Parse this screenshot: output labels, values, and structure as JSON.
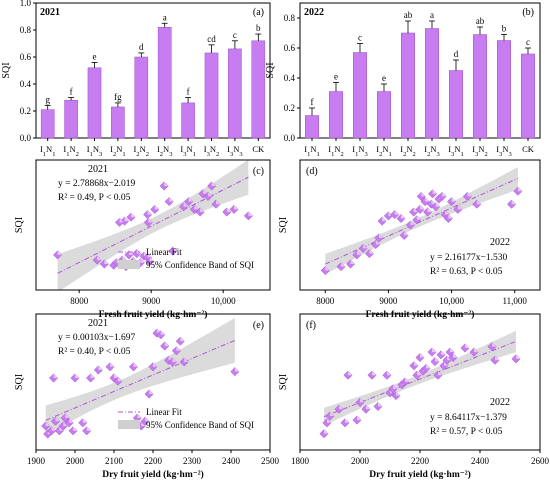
{
  "chart_data": [
    {
      "id": "a",
      "type": "bar",
      "panel_label": "(a)",
      "year": "2021",
      "ylabel": "SQI",
      "ylim": [
        0,
        1.0
      ],
      "yticks": [
        0.0,
        0.2,
        0.4,
        0.6,
        0.8,
        1.0
      ],
      "categories": [
        "I1N1",
        "I1N2",
        "I1N3",
        "I2N1",
        "I2N2",
        "I2N3",
        "I3N1",
        "I3N2",
        "I3N3",
        "CK"
      ],
      "values": [
        0.21,
        0.28,
        0.52,
        0.23,
        0.6,
        0.82,
        0.26,
        0.63,
        0.66,
        0.72
      ],
      "errors": [
        0.03,
        0.02,
        0.04,
        0.03,
        0.03,
        0.03,
        0.04,
        0.06,
        0.06,
        0.05
      ],
      "letters": [
        "g",
        "f",
        "e",
        "fg",
        "d",
        "a",
        "f",
        "cd",
        "c",
        "b"
      ],
      "bar_color": "#c77cf0"
    },
    {
      "id": "b",
      "type": "bar",
      "panel_label": "(b)",
      "year": "2022",
      "ylabel": "SQI",
      "ylim": [
        0,
        0.9
      ],
      "yticks": [
        0.0,
        0.2,
        0.4,
        0.6,
        0.8
      ],
      "categories": [
        "I1N1",
        "I1N2",
        "I1N3",
        "I2N1",
        "I2N2",
        "I2N3",
        "I3N1",
        "I3N2",
        "I3N3",
        "CK"
      ],
      "values": [
        0.15,
        0.31,
        0.57,
        0.31,
        0.7,
        0.73,
        0.45,
        0.69,
        0.65,
        0.56
      ],
      "errors": [
        0.05,
        0.06,
        0.06,
        0.05,
        0.08,
        0.05,
        0.07,
        0.05,
        0.04,
        0.04
      ],
      "letters": [
        "f",
        "e",
        "c",
        "e",
        "ab",
        "a",
        "d",
        "ab",
        "b",
        "c"
      ],
      "bar_color": "#c77cf0"
    },
    {
      "id": "c",
      "type": "scatter",
      "panel_label": "(c)",
      "year": "2021",
      "xlabel": "Fresh fruit yield (kg·hm⁻²)",
      "ylabel": "SQI",
      "xlim": [
        7400,
        10650
      ],
      "ylim": [
        0.0,
        1.0
      ],
      "xticks": [
        8000,
        9000,
        10000
      ],
      "xtick_labels": [
        "8000",
        "9000",
        "10,000"
      ],
      "equation": "y = 2.78868x−2.019",
      "stats": "R² = 0.49,  P < 0.05",
      "fit": {
        "slope": 0.000278868,
        "intercept": -2.019
      },
      "legend": [
        "Linear Fit",
        "95% Confidence Band of SQI"
      ],
      "points": [
        [
          7700,
          0.27
        ],
        [
          8250,
          0.23
        ],
        [
          8350,
          0.2
        ],
        [
          8480,
          0.19
        ],
        [
          8520,
          0.21
        ],
        [
          8600,
          0.23
        ],
        [
          8650,
          0.18
        ],
        [
          8690,
          0.27
        ],
        [
          8750,
          0.22
        ],
        [
          8800,
          0.28
        ],
        [
          8850,
          0.21
        ],
        [
          8900,
          0.26
        ],
        [
          8950,
          0.25
        ],
        [
          8980,
          0.22
        ],
        [
          8960,
          0.52
        ],
        [
          8720,
          0.56
        ],
        [
          8630,
          0.53
        ],
        [
          8560,
          0.52
        ],
        [
          8950,
          0.58
        ],
        [
          9050,
          0.62
        ],
        [
          9180,
          0.8
        ],
        [
          9250,
          0.68
        ],
        [
          9300,
          0.3
        ],
        [
          9450,
          0.64
        ],
        [
          9520,
          0.68
        ],
        [
          9600,
          0.62
        ],
        [
          9680,
          0.6
        ],
        [
          9720,
          0.74
        ],
        [
          9790,
          0.72
        ],
        [
          9840,
          0.8
        ],
        [
          9900,
          0.66
        ],
        [
          10050,
          0.6
        ],
        [
          10150,
          0.62
        ],
        [
          10350,
          0.57
        ]
      ]
    },
    {
      "id": "d",
      "type": "scatter",
      "panel_label": "(d)",
      "year": "2022",
      "xlabel": "Fresh fruit yield (kg·hm⁻²)",
      "ylabel": "SQI",
      "xlim": [
        7600,
        11400
      ],
      "ylim": [
        0.0,
        1.0
      ],
      "xticks": [
        8000,
        9000,
        10000,
        11000
      ],
      "xtick_labels": [
        "8000",
        "9000",
        "10,000",
        "11,000"
      ],
      "equation": "y = 2.16177x−1.530",
      "stats": "R² = 0.63,  P < 0.05",
      "fit": {
        "slope": 0.000216177,
        "intercept": -1.53
      },
      "points": [
        [
          8000,
          0.15
        ],
        [
          8250,
          0.18
        ],
        [
          8400,
          0.2
        ],
        [
          8500,
          0.27
        ],
        [
          8600,
          0.32
        ],
        [
          8700,
          0.28
        ],
        [
          8800,
          0.35
        ],
        [
          8850,
          0.4
        ],
        [
          8900,
          0.53
        ],
        [
          9000,
          0.57
        ],
        [
          9100,
          0.58
        ],
        [
          9200,
          0.55
        ],
        [
          9250,
          0.42
        ],
        [
          9350,
          0.5
        ],
        [
          9400,
          0.6
        ],
        [
          9450,
          0.54
        ],
        [
          9500,
          0.62
        ],
        [
          9520,
          0.72
        ],
        [
          9580,
          0.68
        ],
        [
          9620,
          0.6
        ],
        [
          9680,
          0.66
        ],
        [
          9700,
          0.74
        ],
        [
          9750,
          0.64
        ],
        [
          9800,
          0.7
        ],
        [
          9850,
          0.72
        ],
        [
          9900,
          0.58
        ],
        [
          9950,
          0.55
        ],
        [
          10000,
          0.68
        ],
        [
          10100,
          0.62
        ],
        [
          10250,
          0.72
        ],
        [
          10400,
          0.66
        ],
        [
          10950,
          0.66
        ],
        [
          11050,
          0.76
        ]
      ]
    },
    {
      "id": "e",
      "type": "scatter",
      "panel_label": "(e)",
      "year": "2021",
      "xlabel": "Dry fruit yield (kg·hm⁻²)",
      "ylabel": "SQI",
      "xlim": [
        1900,
        2500
      ],
      "ylim": [
        0.1,
        0.95
      ],
      "xticks": [
        1900,
        2000,
        2100,
        2200,
        2300,
        2400,
        2500
      ],
      "xtick_labels": [
        "1900",
        "2000",
        "2100",
        "2200",
        "2300",
        "2400",
        "2500"
      ],
      "equation": "y = 0.00103x−1.697",
      "stats": "R² = 0.40,  P < 0.05",
      "fit": {
        "slope": 0.00103,
        "intercept": -1.697
      },
      "legend": [
        "Linear Fit",
        "95% Confidence Band of SQI"
      ],
      "points": [
        [
          1925,
          0.25
        ],
        [
          1930,
          0.2
        ],
        [
          1940,
          0.22
        ],
        [
          1945,
          0.55
        ],
        [
          1950,
          0.28
        ],
        [
          1960,
          0.22
        ],
        [
          1970,
          0.25
        ],
        [
          1975,
          0.3
        ],
        [
          1985,
          0.27
        ],
        [
          1995,
          0.22
        ],
        [
          2000,
          0.55
        ],
        [
          2020,
          0.27
        ],
        [
          2030,
          0.22
        ],
        [
          2040,
          0.55
        ],
        [
          2060,
          0.6
        ],
        [
          2090,
          0.62
        ],
        [
          2100,
          0.55
        ],
        [
          2110,
          0.53
        ],
        [
          2150,
          0.62
        ],
        [
          2160,
          0.3
        ],
        [
          2170,
          0.25
        ],
        [
          2180,
          0.28
        ],
        [
          2190,
          0.45
        ],
        [
          2200,
          0.62
        ],
        [
          2210,
          0.83
        ],
        [
          2220,
          0.82
        ],
        [
          2230,
          0.75
        ],
        [
          2240,
          0.66
        ],
        [
          2250,
          0.65
        ],
        [
          2260,
          0.72
        ],
        [
          2270,
          0.78
        ],
        [
          2280,
          0.65
        ],
        [
          2410,
          0.59
        ]
      ]
    },
    {
      "id": "f",
      "type": "scatter",
      "panel_label": "(f)",
      "year": "2022",
      "xlabel": "Dry fruit yield (kg·hm⁻²)",
      "ylabel": "SQI",
      "xlim": [
        1800,
        2600
      ],
      "ylim": [
        0.0,
        1.0
      ],
      "xticks": [
        1800,
        2000,
        2200,
        2400,
        2600
      ],
      "xtick_labels": [
        "1800",
        "2000",
        "2200",
        "2400",
        "2600"
      ],
      "equation": "y = 8.64117x−1.379",
      "stats": "R² = 0.57,  P < 0.05",
      "fit": {
        "slope": 0.00086412,
        "intercept": -1.379
      },
      "points": [
        [
          1880,
          0.12
        ],
        [
          1890,
          0.2
        ],
        [
          1900,
          0.25
        ],
        [
          1930,
          0.3
        ],
        [
          1950,
          0.2
        ],
        [
          1960,
          0.55
        ],
        [
          1990,
          0.22
        ],
        [
          2000,
          0.35
        ],
        [
          2020,
          0.3
        ],
        [
          2040,
          0.55
        ],
        [
          2060,
          0.32
        ],
        [
          2090,
          0.55
        ],
        [
          2100,
          0.42
        ],
        [
          2110,
          0.45
        ],
        [
          2120,
          0.4
        ],
        [
          2140,
          0.48
        ],
        [
          2150,
          0.5
        ],
        [
          2180,
          0.62
        ],
        [
          2190,
          0.55
        ],
        [
          2200,
          0.68
        ],
        [
          2210,
          0.58
        ],
        [
          2220,
          0.6
        ],
        [
          2240,
          0.72
        ],
        [
          2250,
          0.65
        ],
        [
          2260,
          0.55
        ],
        [
          2270,
          0.7
        ],
        [
          2280,
          0.62
        ],
        [
          2290,
          0.66
        ],
        [
          2300,
          0.72
        ],
        [
          2310,
          0.68
        ],
        [
          2350,
          0.75
        ],
        [
          2380,
          0.72
        ],
        [
          2440,
          0.76
        ],
        [
          2450,
          0.66
        ],
        [
          2520,
          0.67
        ]
      ]
    }
  ],
  "colors": {
    "marker": "#c77cf0",
    "marker_light": "#e8c8fb",
    "bar": "#c77cf0",
    "fit_line": "#b056d8",
    "band": "#cfcfcf"
  }
}
